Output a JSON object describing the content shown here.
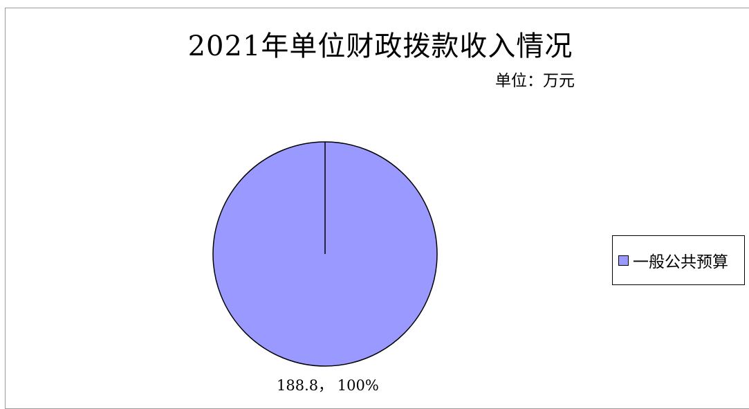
{
  "chart_data": {
    "type": "pie",
    "title": "2021年单位财政拨款收入情况",
    "unit_label": "单位：万元",
    "slices": [
      {
        "name": "一般公共预算",
        "value": 188.8,
        "percent_label": "100%",
        "data_label": "188.8， 100%",
        "color": "#9999ff"
      }
    ],
    "legend": {
      "position": "right",
      "entries": [
        "一般公共预算"
      ]
    },
    "style": {
      "slice_stroke": "#000000",
      "frame_color": "#9a9a9a"
    }
  }
}
